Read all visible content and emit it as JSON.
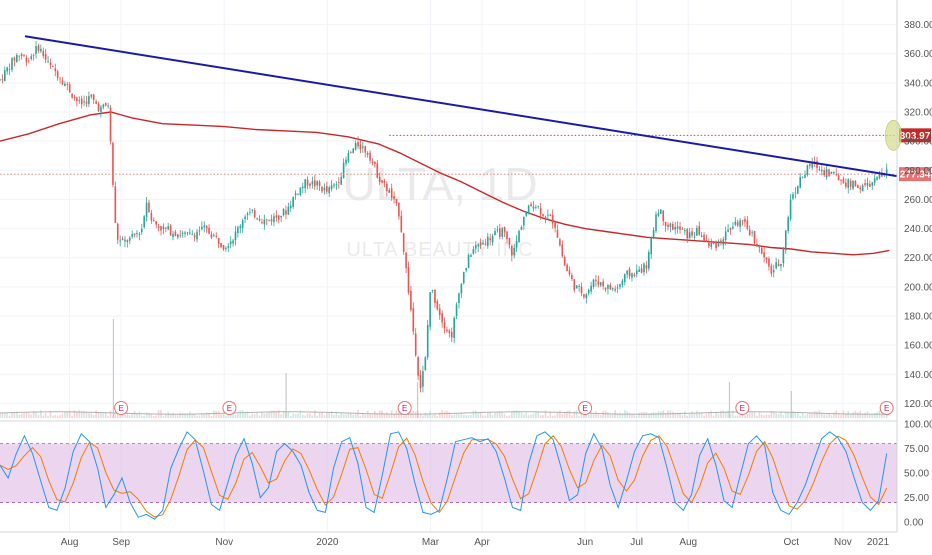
{
  "chart_data": {
    "type": "candlestick",
    "symbol": "ULTA",
    "timeframe": "1D",
    "watermark_title": "ULTA, 1D",
    "watermark_subtitle": "ULTA BEAUTY INC",
    "price_axis": {
      "min": 110,
      "max": 390,
      "ticks": [
        "380.00",
        "360.00",
        "340.00",
        "320.00",
        "300.00",
        "280.00",
        "260.00",
        "240.00",
        "220.00",
        "200.00",
        "180.00",
        "160.00",
        "140.00",
        "120.00"
      ],
      "tick_values": [
        380,
        360,
        340,
        320,
        300,
        280,
        260,
        240,
        220,
        200,
        180,
        160,
        140,
        120
      ]
    },
    "time_axis": {
      "start_month": 6.65,
      "end_month": 24.05,
      "labels": [
        {
          "text": "Aug",
          "month": 8
        },
        {
          "text": "Sep",
          "month": 9
        },
        {
          "text": "Nov",
          "month": 11
        },
        {
          "text": "2020",
          "month": 13
        },
        {
          "text": "Mar",
          "month": 15
        },
        {
          "text": "Apr",
          "month": 16
        },
        {
          "text": "Jun",
          "month": 18
        },
        {
          "text": "Jul",
          "month": 19
        },
        {
          "text": "Aug",
          "month": 20
        },
        {
          "text": "Oct",
          "month": 22
        },
        {
          "text": "Nov",
          "month": 23
        },
        {
          "text": "2021",
          "month": 25
        }
      ]
    },
    "price_path": [
      [
        6.65,
        342
      ],
      [
        6.8,
        350
      ],
      [
        7.0,
        360
      ],
      [
        7.2,
        356
      ],
      [
        7.4,
        365
      ],
      [
        7.6,
        352
      ],
      [
        7.8,
        345
      ],
      [
        8.0,
        335
      ],
      [
        8.2,
        325
      ],
      [
        8.4,
        330
      ],
      [
        8.6,
        322
      ],
      [
        8.75,
        325
      ],
      [
        8.9,
        235
      ],
      [
        9.0,
        230
      ],
      [
        9.2,
        233
      ],
      [
        9.4,
        240
      ],
      [
        9.5,
        260
      ],
      [
        9.6,
        245
      ],
      [
        9.8,
        240
      ],
      [
        10.0,
        238
      ],
      [
        10.3,
        235
      ],
      [
        10.6,
        240
      ],
      [
        10.8,
        235
      ],
      [
        11.0,
        228
      ],
      [
        11.2,
        235
      ],
      [
        11.4,
        250
      ],
      [
        11.6,
        250
      ],
      [
        11.8,
        245
      ],
      [
        12.0,
        248
      ],
      [
        12.2,
        252
      ],
      [
        12.4,
        265
      ],
      [
        12.6,
        272
      ],
      [
        12.8,
        270
      ],
      [
        13.0,
        265
      ],
      [
        13.2,
        272
      ],
      [
        13.4,
        290
      ],
      [
        13.6,
        298
      ],
      [
        13.8,
        292
      ],
      [
        14.0,
        275
      ],
      [
        14.2,
        265
      ],
      [
        14.4,
        250
      ],
      [
        14.6,
        190
      ],
      [
        14.8,
        130
      ],
      [
        14.9,
        150
      ],
      [
        15.0,
        200
      ],
      [
        15.2,
        180
      ],
      [
        15.4,
        165
      ],
      [
        15.6,
        205
      ],
      [
        15.8,
        225
      ],
      [
        16.0,
        230
      ],
      [
        16.2,
        235
      ],
      [
        16.4,
        238
      ],
      [
        16.6,
        222
      ],
      [
        16.8,
        248
      ],
      [
        17.0,
        258
      ],
      [
        17.2,
        250
      ],
      [
        17.4,
        245
      ],
      [
        17.6,
        215
      ],
      [
        17.8,
        200
      ],
      [
        18.0,
        195
      ],
      [
        18.2,
        205
      ],
      [
        18.4,
        200
      ],
      [
        18.6,
        198
      ],
      [
        18.8,
        208
      ],
      [
        19.0,
        210
      ],
      [
        19.2,
        215
      ],
      [
        19.4,
        255
      ],
      [
        19.6,
        242
      ],
      [
        19.8,
        240
      ],
      [
        20.0,
        235
      ],
      [
        20.2,
        238
      ],
      [
        20.4,
        228
      ],
      [
        20.6,
        230
      ],
      [
        20.8,
        240
      ],
      [
        21.0,
        245
      ],
      [
        21.2,
        238
      ],
      [
        21.4,
        225
      ],
      [
        21.6,
        210
      ],
      [
        21.8,
        218
      ],
      [
        22.0,
        262
      ],
      [
        22.2,
        275
      ],
      [
        22.4,
        285
      ],
      [
        22.6,
        280
      ],
      [
        22.8,
        278
      ],
      [
        23.0,
        272
      ],
      [
        23.2,
        270
      ],
      [
        23.4,
        268
      ],
      [
        23.6,
        272
      ],
      [
        23.85,
        279
      ]
    ],
    "moving_average": {
      "color": "#c62828",
      "points": [
        [
          6.65,
          300
        ],
        [
          7.2,
          305
        ],
        [
          7.8,
          312
        ],
        [
          8.4,
          318
        ],
        [
          8.8,
          320
        ],
        [
          9.2,
          316
        ],
        [
          9.8,
          312
        ],
        [
          10.4,
          311
        ],
        [
          11.0,
          310
        ],
        [
          11.6,
          308
        ],
        [
          12.2,
          307
        ],
        [
          12.8,
          306
        ],
        [
          13.4,
          303
        ],
        [
          14.0,
          298
        ],
        [
          14.4,
          292
        ],
        [
          14.8,
          285
        ],
        [
          15.2,
          278
        ],
        [
          15.6,
          272
        ],
        [
          16.0,
          265
        ],
        [
          16.4,
          258
        ],
        [
          16.8,
          252
        ],
        [
          17.2,
          247
        ],
        [
          17.6,
          243
        ],
        [
          18.0,
          240
        ],
        [
          18.4,
          238
        ],
        [
          18.8,
          236
        ],
        [
          19.2,
          234
        ],
        [
          19.6,
          233
        ],
        [
          20.0,
          232
        ],
        [
          20.4,
          231
        ],
        [
          20.8,
          230
        ],
        [
          21.2,
          229
        ],
        [
          21.6,
          227
        ],
        [
          22.0,
          226
        ],
        [
          22.4,
          224
        ],
        [
          22.8,
          223
        ],
        [
          23.2,
          222
        ],
        [
          23.6,
          223
        ],
        [
          23.9,
          225
        ]
      ]
    },
    "trendline": {
      "color": "#1a1aaa",
      "from": [
        6.65,
        372
      ],
      "to": [
        24.05,
        276
      ]
    },
    "horizontal_levels": [
      {
        "value": 303.97,
        "label": "303.97",
        "color": "#c62828"
      },
      {
        "value": 277.34,
        "label": "277.34",
        "color": "#e57373"
      }
    ],
    "target_marker": {
      "month": 23.98,
      "value": 304,
      "color": "#d4dc8a"
    },
    "earnings_markers": {
      "label": "E",
      "months": [
        9.0,
        11.1,
        14.5,
        18.0,
        21.05,
        23.85
      ]
    },
    "volume": {
      "spikes": [
        {
          "month": 8.85,
          "height": 0.55
        },
        {
          "month": 12.2,
          "height": 0.25
        },
        {
          "month": 14.75,
          "height": 0.2
        },
        {
          "month": 20.8,
          "height": 0.2
        },
        {
          "month": 22.0,
          "height": 0.15
        }
      ]
    },
    "stochastic": {
      "axis_ticks": [
        "100.00",
        "75.00",
        "50.00",
        "25.00",
        "0.00"
      ],
      "tick_values": [
        100,
        75,
        50,
        25,
        0
      ],
      "upper_band": 80,
      "lower_band": 20,
      "band_color": "#e1bee7",
      "k_color": "#2196f3",
      "d_color": "#f57c00",
      "k_values": [
        58,
        45,
        70,
        88,
        70,
        42,
        15,
        12,
        35,
        72,
        90,
        82,
        55,
        15,
        28,
        45,
        20,
        5,
        8,
        3,
        12,
        55,
        75,
        92,
        84,
        52,
        18,
        12,
        40,
        68,
        85,
        60,
        25,
        35,
        72,
        80,
        72,
        58,
        30,
        12,
        10,
        55,
        82,
        86,
        60,
        15,
        10,
        48,
        90,
        92,
        75,
        40,
        10,
        8,
        12,
        45,
        82,
        84,
        86,
        82,
        85,
        72,
        45,
        15,
        12,
        60,
        88,
        92,
        84,
        55,
        22,
        28,
        70,
        90,
        75,
        38,
        15,
        42,
        72,
        88,
        90,
        86,
        55,
        20,
        12,
        28,
        68,
        85,
        58,
        22,
        15,
        48,
        80,
        88,
        78,
        30,
        12,
        8,
        20,
        38,
        62,
        85,
        92,
        86,
        72,
        45,
        20,
        12,
        22,
        70
      ]
    }
  }
}
